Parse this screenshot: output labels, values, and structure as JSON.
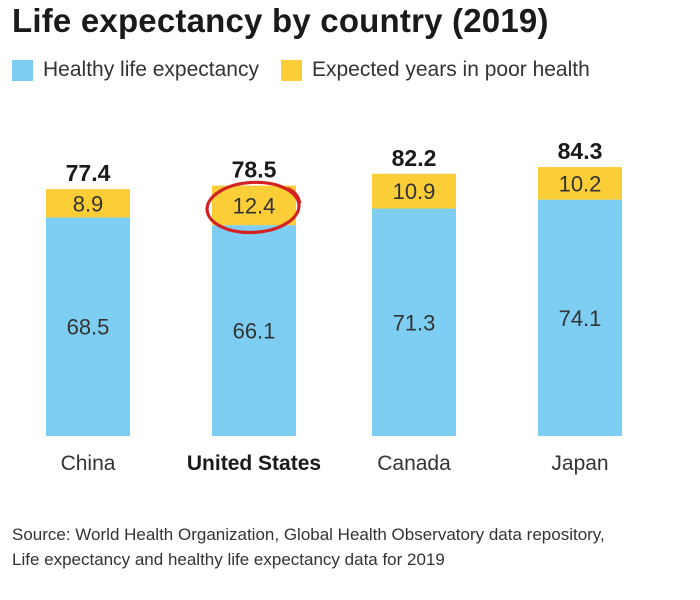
{
  "title": "Life expectancy by country (2019)",
  "legend": [
    {
      "label": "Healthy life expectancy",
      "color": "#7ecdf2"
    },
    {
      "label": "Expected years in poor health",
      "color": "#fbcd37"
    }
  ],
  "source": {
    "line1": "Source: World Health Organization, Global Health Observatory data repository,",
    "line2": "Life expectancy and healthy life expectancy data for 2019"
  },
  "chart_data": {
    "type": "bar",
    "stacked": true,
    "title": "Life expectancy by country (2019)",
    "categories": [
      "China",
      "United States",
      "Canada",
      "Japan"
    ],
    "highlighted_category": "United States",
    "series": [
      {
        "name": "Healthy life expectancy",
        "color": "#7ecdf2",
        "values": [
          68.5,
          66.1,
          71.3,
          74.1
        ]
      },
      {
        "name": "Expected years in poor health",
        "color": "#fbcd37",
        "values": [
          8.9,
          12.4,
          10.9,
          10.2
        ]
      }
    ],
    "totals": [
      "77.4",
      "78.5",
      "82.2",
      "84.3"
    ],
    "segment_labels": {
      "healthy": [
        "68.5",
        "66.1",
        "71.3",
        "74.1"
      ],
      "poor": [
        "8.9",
        "12.4",
        "10.9",
        "10.2"
      ]
    },
    "circled_annotation": {
      "category": "United States",
      "series": "Expected years in poor health",
      "color": "#d42121"
    },
    "legend_position": "top-left",
    "grid": false
  }
}
